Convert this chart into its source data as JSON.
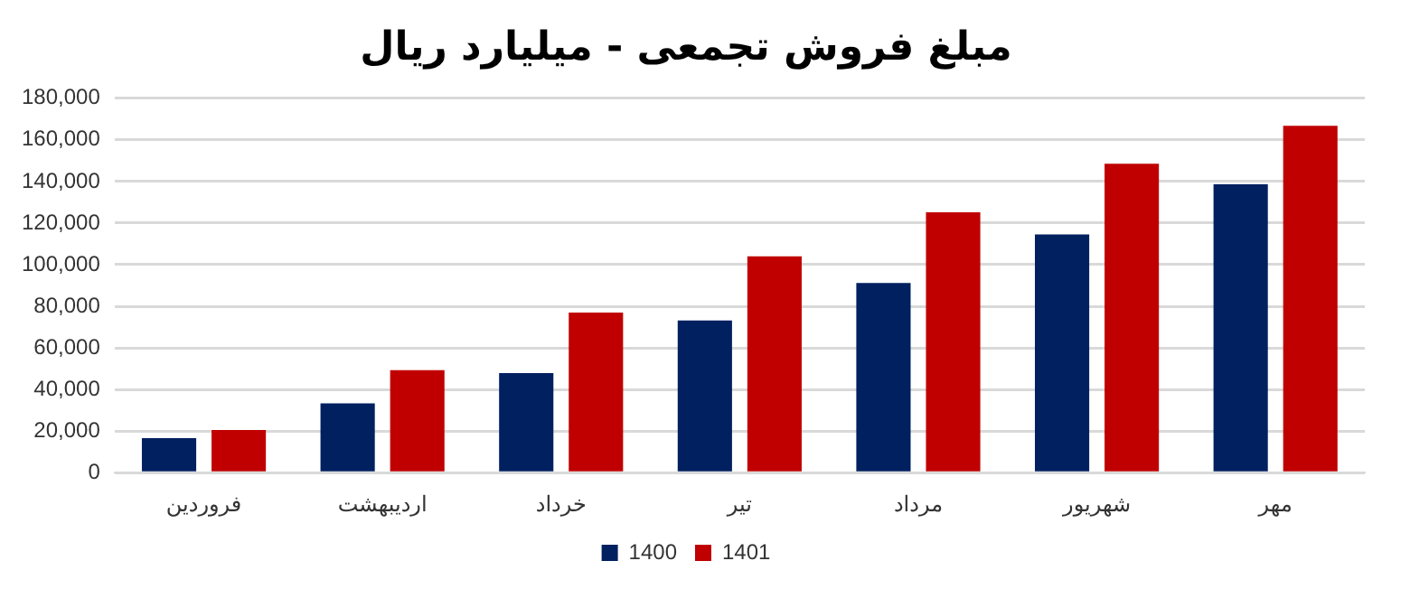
{
  "chart_data": {
    "type": "bar",
    "title": "مبلغ فروش تجمعی - میلیارد ریال",
    "categories": [
      "فروردین",
      "اردیبهشت",
      "خرداد",
      "تیر",
      "مرداد",
      "شهریور",
      "مهر"
    ],
    "series": [
      {
        "name": "1400",
        "color": "#002060",
        "values": [
          16600,
          33300,
          47900,
          73200,
          91200,
          114500,
          138700
        ]
      },
      {
        "name": "1401",
        "color": "#c00000",
        "values": [
          20500,
          49300,
          77000,
          104000,
          125200,
          148500,
          166800
        ]
      }
    ],
    "ylim": [
      0,
      180000
    ],
    "yticks": [
      {
        "value": 0,
        "label": "0"
      },
      {
        "value": 20000,
        "label": "20,000"
      },
      {
        "value": 40000,
        "label": "40,000"
      },
      {
        "value": 60000,
        "label": "60,000"
      },
      {
        "value": 80000,
        "label": "80,000"
      },
      {
        "value": 100000,
        "label": "100,000"
      },
      {
        "value": 120000,
        "label": "120,000"
      },
      {
        "value": 140000,
        "label": "140,000"
      },
      {
        "value": 160000,
        "label": "160,000"
      },
      {
        "value": 180000,
        "label": "180,000"
      }
    ],
    "grid": "y",
    "legend": "bottom"
  }
}
